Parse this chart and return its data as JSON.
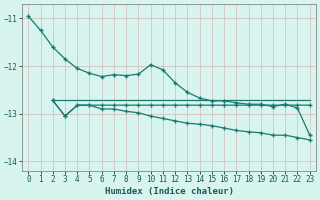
{
  "line1_x": [
    0,
    1,
    2,
    3,
    4,
    5,
    6,
    7,
    8,
    9,
    10,
    11,
    12,
    13,
    14,
    15,
    16,
    17,
    18,
    19,
    20,
    21,
    22,
    23
  ],
  "line1_y": [
    -10.95,
    -11.25,
    -11.6,
    -11.85,
    -12.05,
    -12.15,
    -12.22,
    -12.18,
    -12.2,
    -12.17,
    -11.97,
    -12.08,
    -12.35,
    -12.55,
    -12.67,
    -12.73,
    -12.73,
    -12.77,
    -12.8,
    -12.8,
    -12.85,
    -12.8,
    -12.88,
    -13.45
  ],
  "line2_x": [
    2,
    3,
    4,
    5,
    6,
    7,
    8,
    9,
    10,
    11,
    12,
    13,
    14,
    15,
    16,
    17,
    18,
    19,
    20,
    21,
    22,
    23
  ],
  "line2_y": [
    -12.72,
    -12.72,
    -12.72,
    -12.72,
    -12.72,
    -12.72,
    -12.72,
    -12.72,
    -12.72,
    -12.72,
    -12.72,
    -12.72,
    -12.72,
    -12.72,
    -12.72,
    -12.72,
    -12.72,
    -12.72,
    -12.72,
    -12.72,
    -12.72,
    -12.72
  ],
  "line3_x": [
    2,
    3,
    4,
    5,
    6,
    7,
    8,
    9,
    10,
    11,
    12,
    13,
    14,
    15,
    16,
    17,
    18,
    19,
    20,
    21,
    22,
    23
  ],
  "line3_y": [
    -12.72,
    -13.05,
    -12.82,
    -12.82,
    -12.82,
    -12.82,
    -12.82,
    -12.82,
    -12.82,
    -12.82,
    -12.82,
    -12.82,
    -12.82,
    -12.82,
    -12.82,
    -12.82,
    -12.82,
    -12.82,
    -12.82,
    -12.82,
    -12.82,
    -12.82
  ],
  "line4_x": [
    2,
    3,
    4,
    5,
    6,
    7,
    8,
    9,
    10,
    11,
    12,
    13,
    14,
    15,
    16,
    17,
    18,
    19,
    20,
    21,
    22,
    23
  ],
  "line4_y": [
    -12.72,
    -13.05,
    -12.82,
    -12.82,
    -12.9,
    -12.9,
    -12.95,
    -12.98,
    -13.05,
    -13.1,
    -13.15,
    -13.2,
    -13.22,
    -13.25,
    -13.3,
    -13.35,
    -13.38,
    -13.4,
    -13.45,
    -13.45,
    -13.5,
    -13.55
  ],
  "line_color": "#1a7a6e",
  "bg_color": "#d7f4ef",
  "grid_color": "#c8ddd8",
  "xlabel": "Humidex (Indice chaleur)",
  "ylim": [
    -14.2,
    -10.7
  ],
  "xlim": [
    -0.5,
    23.5
  ],
  "yticks": [
    -11,
    -12,
    -13,
    -14
  ],
  "xticks": [
    0,
    1,
    2,
    3,
    4,
    5,
    6,
    7,
    8,
    9,
    10,
    11,
    12,
    13,
    14,
    15,
    16,
    17,
    18,
    19,
    20,
    21,
    22,
    23
  ]
}
